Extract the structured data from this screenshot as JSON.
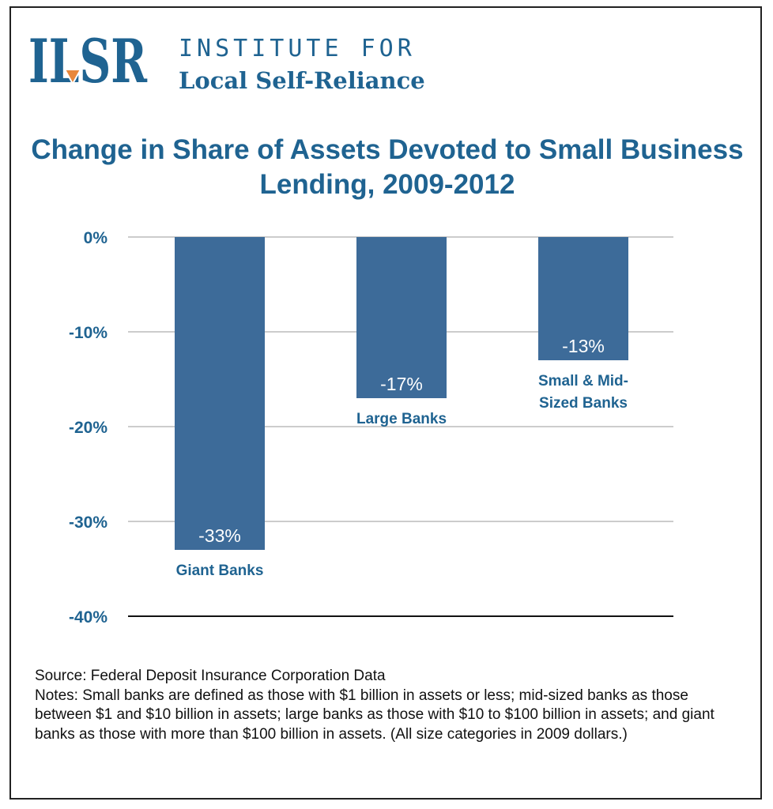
{
  "header": {
    "logo_text": "ILSR",
    "org_line1": "INSTITUTE FOR",
    "org_line2": "Local Self-Reliance"
  },
  "chart_data": {
    "type": "bar",
    "title": "Change in Share of Assets Devoted to Small Business Lending, 2009-2012",
    "categories": [
      "Giant Banks",
      "Large Banks",
      "Small & Mid-Sized Banks"
    ],
    "category_lines": [
      [
        "Giant Banks"
      ],
      [
        "Large Banks"
      ],
      [
        "Small & Mid-",
        "Sized Banks"
      ]
    ],
    "values": [
      -33,
      -17,
      -13
    ],
    "value_labels": [
      "-33%",
      "-17%",
      "-13%"
    ],
    "ylim": [
      -40,
      0
    ],
    "yticks": [
      0,
      -10,
      -20,
      -30,
      -40
    ],
    "ytick_labels": [
      "0%",
      "-10%",
      "-20%",
      "-30%",
      "-40%"
    ],
    "xlabel": "",
    "ylabel": "",
    "grid": true,
    "legend": "none",
    "colors": {
      "bar": "#3d6b99",
      "title": "#1f6391",
      "axis_text": "#1f6391",
      "grid": "#bbbbbb",
      "value_label": "#ffffff"
    }
  },
  "footer": {
    "source": "Source: Federal Deposit Insurance Corporation Data",
    "notes": "Notes: Small banks are defined as those with $1 billion in assets or less; mid-sized banks as those between $1 and $10 billion in assets; large banks as those with $10 to $100 billion in assets; and giant banks as those with more than $100 billion in assets. (All size categories in 2009 dollars.)"
  }
}
